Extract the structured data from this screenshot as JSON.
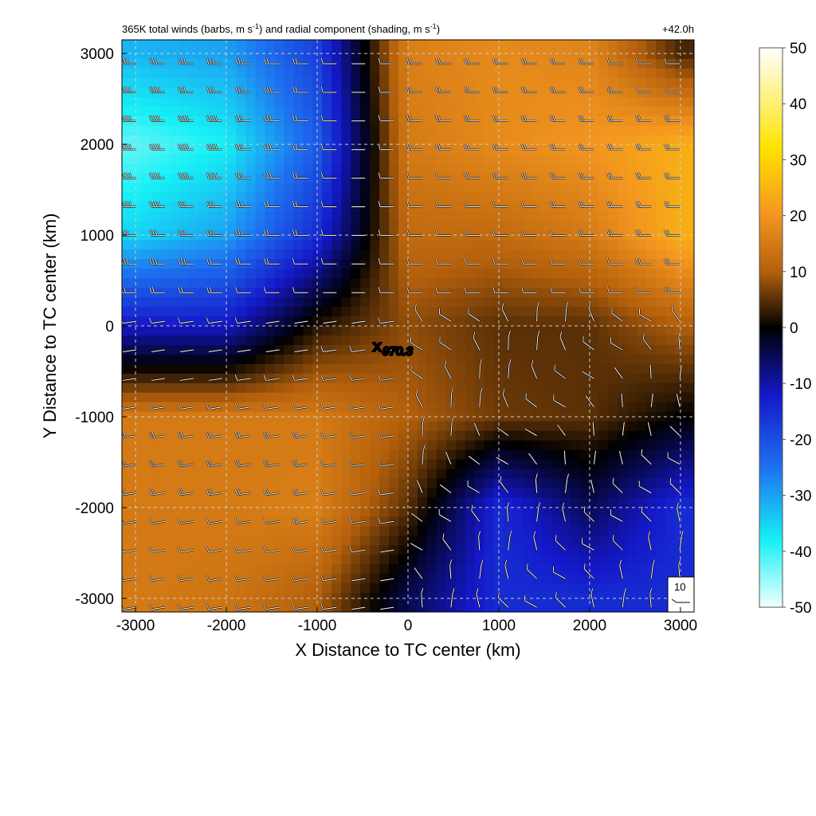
{
  "chart_data": {
    "type": "heatmap",
    "title_left": "365K total winds (barbs, m s",
    "title_left_sup": "-1",
    "title_left_mid": ") and radial component (shading, m s",
    "title_left_sup2": "-1",
    "title_left_end": ")",
    "title_right": "+42.0h",
    "xlabel": "X Distance to TC center (km)",
    "ylabel": "Y Distance to TC center (km)",
    "xlim": [
      -3150,
      3150
    ],
    "ylim": [
      -3150,
      3150
    ],
    "xticks": [
      -3000,
      -2000,
      -1000,
      0,
      1000,
      2000,
      3000
    ],
    "yticks": [
      -3000,
      -2000,
      -1000,
      0,
      1000,
      2000,
      3000
    ],
    "grid": true,
    "center_marker": {
      "x": -200,
      "y": -250,
      "symbol": "X",
      "label": "970.3"
    },
    "barb_reference": {
      "label": "10"
    },
    "colorbar": {
      "range": [
        -50,
        50
      ],
      "ticks": [
        50,
        40,
        30,
        20,
        10,
        0,
        -10,
        -20,
        -30,
        -40,
        -50
      ],
      "stops": [
        {
          "v": -50,
          "color": "#f2ffff"
        },
        {
          "v": -38,
          "color": "#16f0f5"
        },
        {
          "v": -25,
          "color": "#1e70f0"
        },
        {
          "v": -12,
          "color": "#1418c8"
        },
        {
          "v": 0,
          "color": "#000000"
        },
        {
          "v": 10,
          "color": "#b4600c"
        },
        {
          "v": 20,
          "color": "#f39520"
        },
        {
          "v": 32,
          "color": "#ffe200"
        },
        {
          "v": 50,
          "color": "#ffffff"
        }
      ]
    },
    "radial_wind_field": {
      "x": [
        -3000,
        -2000,
        -1000,
        0,
        1000,
        2000,
        3000
      ],
      "y": [
        3000,
        2000,
        1000,
        0,
        -1000,
        -2000,
        -3000
      ],
      "values": [
        [
          -32,
          -30,
          -18,
          16,
          18,
          17,
          4
        ],
        [
          -42,
          -38,
          -22,
          15,
          18,
          20,
          24
        ],
        [
          -35,
          -30,
          -15,
          12,
          12,
          15,
          24
        ],
        [
          -12,
          -12,
          2,
          8,
          5,
          5,
          10
        ],
        [
          15,
          15,
          15,
          10,
          6,
          5,
          0
        ],
        [
          15,
          15,
          16,
          5,
          -15,
          -5,
          -15
        ],
        [
          15,
          14,
          10,
          -5,
          -15,
          -15,
          -15
        ]
      ]
    }
  }
}
